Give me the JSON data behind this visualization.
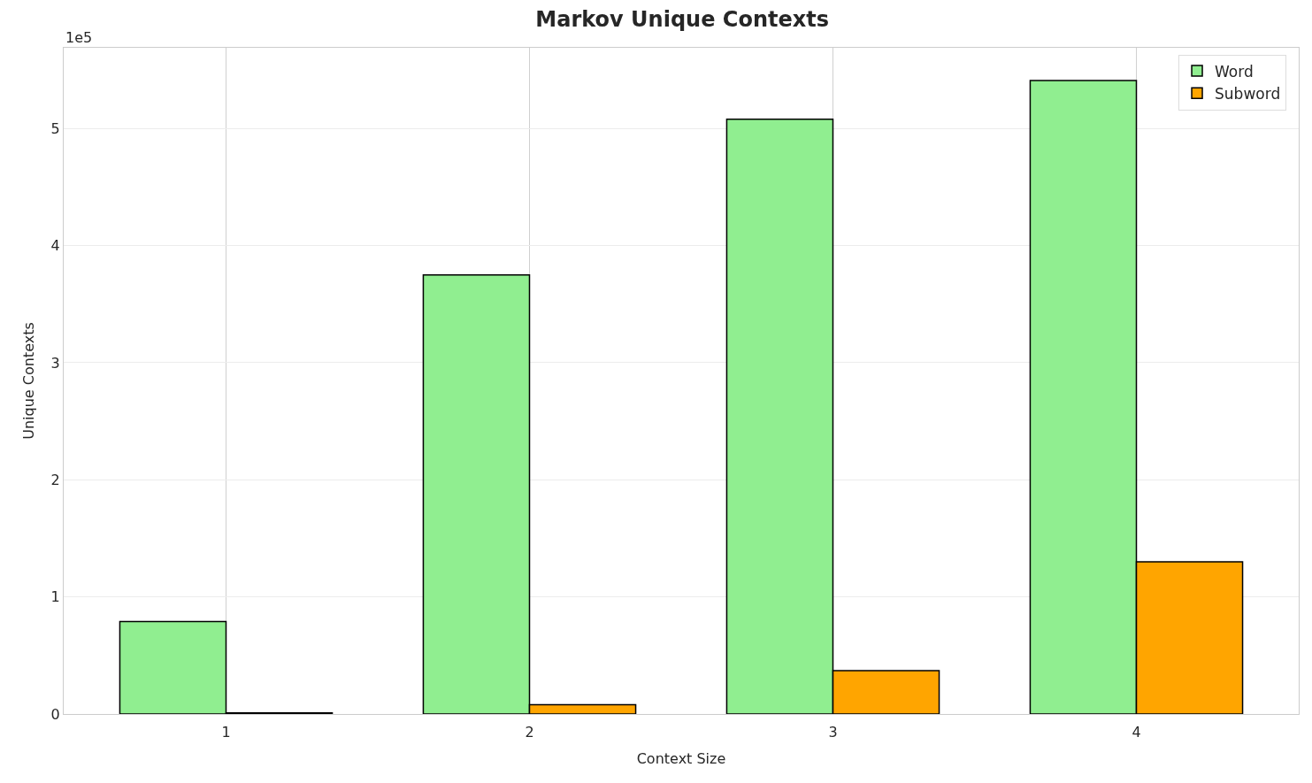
{
  "chart_data": {
    "type": "bar",
    "title": "Markov Unique Contexts",
    "xlabel": "Context Size",
    "ylabel": "Unique Contexts",
    "categories": [
      "1",
      "2",
      "3",
      "4"
    ],
    "series": [
      {
        "name": "Word",
        "color": "#90ee90",
        "values": [
          0.79,
          3.75,
          5.08,
          5.41
        ]
      },
      {
        "name": "Subword",
        "color": "#ffa500",
        "values": [
          0.01,
          0.08,
          0.37,
          1.3
        ]
      }
    ],
    "ylim": [
      0,
      5.69
    ],
    "yticks": [
      0,
      1,
      2,
      3,
      4,
      5
    ],
    "annotations": [
      "1e5"
    ],
    "grid": true,
    "legend": "top right"
  }
}
